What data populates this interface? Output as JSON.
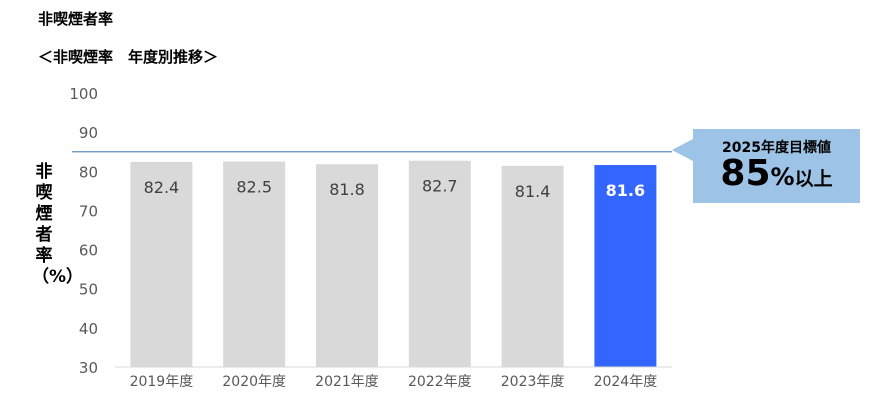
{
  "title": "非喫煙者率",
  "subtitle": "＜非喫煙率　年度別推移＞",
  "chart_data": {
    "type": "bar",
    "ylabel": "非喫煙者率（%）",
    "ylim": [
      30,
      100
    ],
    "yticks": [
      30,
      40,
      50,
      60,
      70,
      80,
      90,
      100
    ],
    "categories": [
      "2019年度",
      "2020年度",
      "2021年度",
      "2022年度",
      "2023年度",
      "2024年度"
    ],
    "values": [
      82.4,
      82.5,
      81.8,
      82.7,
      81.4,
      81.6
    ],
    "value_labels": [
      "82.4",
      "82.5",
      "81.8",
      "82.7",
      "81.4",
      "81.6"
    ],
    "highlight_index": 5,
    "target_line": 85,
    "colors": {
      "bar": "#d9d9d9",
      "highlight": "#3366ff",
      "target": "#5b8ec4",
      "callout": "#9dc3e6"
    },
    "grid": false
  },
  "callout": {
    "label": "2025年度目標値",
    "value": "85",
    "unit": "%",
    "suffix": "以上"
  }
}
